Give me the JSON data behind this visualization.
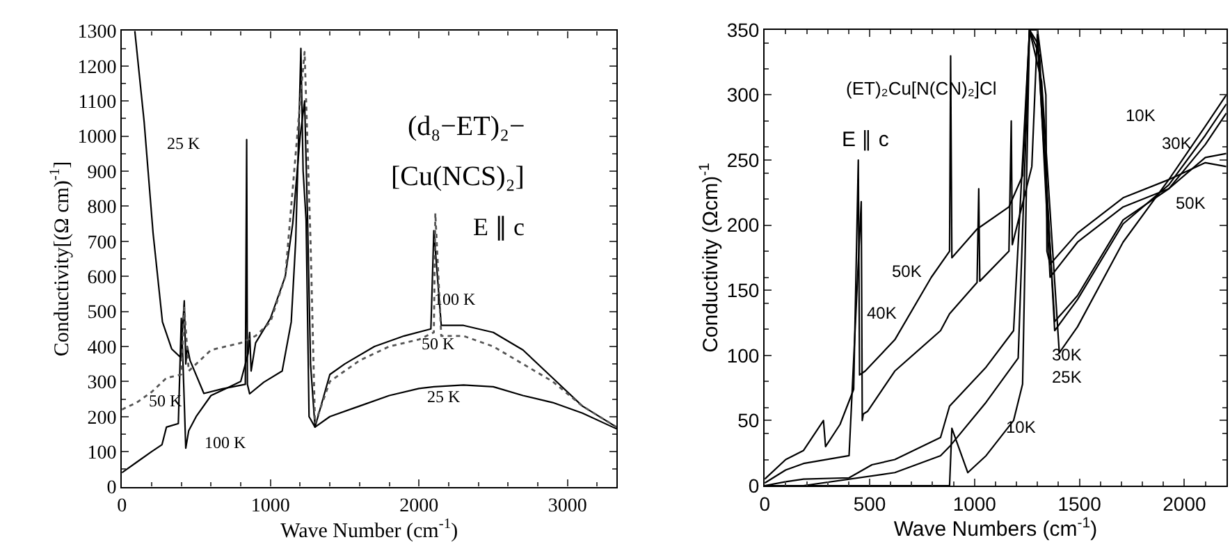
{
  "chart_data": [
    {
      "type": "line",
      "xlabel": "Wave Number (cm$^{-1}$)",
      "ylabel": "Conductivity[(Ω cm)$^{-1}$]",
      "xlim": [
        0,
        3330
      ],
      "xticks": [
        0,
        1000,
        2000,
        3000
      ],
      "ylim": [
        0,
        1300
      ],
      "yticks": [
        0,
        100,
        200,
        300,
        400,
        500,
        600,
        700,
        800,
        900,
        1000,
        1100,
        1200,
        1300
      ],
      "marker": "none",
      "series": [
        {
          "color": "#000000",
          "line_style": "solid",
          "x": [
            87,
            150,
            210,
            273,
            335,
            397,
            420,
            430,
            440,
            459,
            552,
            676,
            831,
            840,
            845,
            860,
            955,
            1079,
            1140,
            1170,
            1190,
            1205,
            1220,
            1240,
            1260,
            1300,
            1400,
            1600,
            1800,
            2000,
            2100,
            2300,
            2500,
            2700,
            2900,
            3100,
            3330
          ],
          "values": [
            1300,
            1040,
            723,
            470,
            393,
            368,
            530,
            350,
            400,
            360,
            266,
            279,
            292,
            990,
            292,
            265,
            298,
            330,
            470,
            700,
            1000,
            1250,
            900,
            760,
            200,
            170,
            200,
            230,
            260,
            280,
            285,
            290,
            285,
            260,
            240,
            210,
            165
          ]
        },
        {
          "color": "#000000",
          "line_style": "solid",
          "x": [
            0,
            100,
            200,
            270,
            300,
            380,
            400,
            410,
            430,
            450,
            500,
            600,
            700,
            800,
            850,
            860,
            870,
            900,
            1000,
            1100,
            1150,
            1200,
            1230,
            1250,
            1270,
            1300,
            1400,
            1500,
            1700,
            1900,
            2080,
            2100,
            2150,
            2300,
            2500,
            2700,
            2900,
            3100,
            3330
          ],
          "values": [
            40,
            70,
            100,
            120,
            170,
            180,
            480,
            370,
            110,
            160,
            200,
            260,
            280,
            300,
            380,
            440,
            330,
            410,
            480,
            600,
            750,
            1000,
            1100,
            760,
            350,
            170,
            320,
            350,
            400,
            430,
            450,
            730,
            460,
            460,
            440,
            390,
            310,
            230,
            170
          ]
        },
        {
          "color": "#555555",
          "line_style": "dotted",
          "x": [
            0,
            100,
            200,
            300,
            400,
            420,
            450,
            500,
            600,
            700,
            800,
            850,
            900,
            1000,
            1100,
            1200,
            1230,
            1270,
            1300,
            1400,
            1600,
            1800,
            2000,
            2100,
            2110,
            2150,
            2300,
            2500,
            2700,
            2900,
            3100,
            3330
          ],
          "values": [
            220,
            240,
            270,
            310,
            320,
            510,
            330,
            350,
            390,
            400,
            410,
            420,
            430,
            470,
            600,
            1100,
            1240,
            700,
            180,
            300,
            360,
            400,
            420,
            440,
            780,
            430,
            430,
            400,
            350,
            300,
            230,
            170
          ]
        }
      ],
      "annotations": [
        "(d₈−ET)₂−",
        "[Cu(NCS)₂]",
        "E ∥ c",
        "25 K",
        "100 K",
        "50 K",
        "25 K",
        "50 K",
        "100 K"
      ]
    },
    {
      "type": "line",
      "xlabel": "Wave Numbers (cm$^{-1}$)",
      "ylabel": "Conductivity (Ωcm)$^{-1}$",
      "xlim": [
        0,
        2200
      ],
      "xticks": [
        0,
        500,
        1000,
        1500,
        2000
      ],
      "ylim": [
        0,
        350
      ],
      "yticks": [
        0,
        50,
        100,
        150,
        200,
        250,
        300,
        350
      ],
      "marker": "none",
      "series": [
        {
          "color": "#000000",
          "line_style": "solid",
          "x": [
            0,
            100,
            185,
            280,
            290,
            359,
            424,
            446,
            452,
            479,
            620,
            794,
            881,
            886,
            892,
            1012,
            1164,
            1229,
            1262,
            1300,
            1340,
            1345,
            1360,
            1491,
            1708,
            1926,
            2100,
            2200
          ],
          "values": [
            5,
            20,
            27,
            50,
            30,
            47,
            74,
            250,
            85,
            88,
            112,
            160,
            180,
            330,
            175,
            197,
            214,
            238,
            350,
            350,
            300,
            180,
            170,
            194,
            221,
            235,
            248,
            245
          ]
        },
        {
          "color": "#000000",
          "line_style": "solid",
          "x": [
            0,
            100,
            185,
            402,
            460,
            465,
            470,
            490,
            620,
            838,
            881,
            1012,
            1020,
            1025,
            1164,
            1175,
            1180,
            1273,
            1300,
            1360,
            1491,
            1708,
            1926,
            2100,
            2200
          ],
          "values": [
            2,
            12,
            17,
            23,
            218,
            50,
            55,
            57,
            88,
            119,
            132,
            156,
            228,
            157,
            180,
            280,
            185,
            245,
            350,
            160,
            187,
            214,
            228,
            252,
            255
          ]
        },
        {
          "color": "#000000",
          "line_style": "solid",
          "x": [
            0,
            100,
            185,
            402,
            511,
            620,
            838,
            881,
            1055,
            1186,
            1262,
            1300,
            1382,
            1491,
            1708,
            1926,
            2100,
            2200
          ],
          "values": [
            0,
            3,
            5,
            6,
            16,
            20,
            37,
            61,
            91,
            119,
            350,
            340,
            126,
            146,
            204,
            228,
            262,
            286
          ]
        },
        {
          "color": "#000000",
          "line_style": "solid",
          "x": [
            0,
            185,
            620,
            838,
            881,
            1055,
            1208,
            1262,
            1310,
            1382,
            1491,
            1708,
            1926,
            2100,
            2200
          ],
          "values": [
            0,
            0,
            10,
            23,
            30,
            64,
            98,
            350,
            330,
            119,
            143,
            201,
            231,
            269,
            293
          ]
        },
        {
          "color": "#000000",
          "line_style": "solid",
          "x": [
            0,
            500,
            870,
            881,
            892,
            968,
            1055,
            1186,
            1229,
            1262,
            1320,
            1404,
            1491,
            1708,
            1926,
            2100,
            2200
          ],
          "values": [
            0,
            0,
            0,
            0,
            44,
            10,
            23,
            50,
            78,
            350,
            310,
            102,
            122,
            187,
            235,
            276,
            300
          ]
        }
      ],
      "annotations": [
        "(ET)₂Cu[N(CN)₂]Cl",
        "E ∥ c",
        "50K",
        "40K",
        "30K",
        "25K",
        "10K",
        "10K",
        "30K",
        "50K"
      ]
    }
  ]
}
